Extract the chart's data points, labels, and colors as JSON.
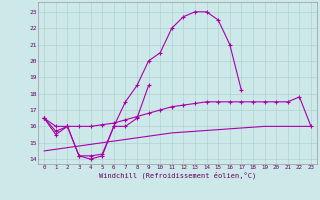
{
  "x": [
    0,
    1,
    2,
    3,
    4,
    5,
    6,
    7,
    8,
    9,
    10,
    11,
    12,
    13,
    14,
    15,
    16,
    17,
    18,
    19,
    20,
    21,
    22,
    23
  ],
  "line1": [
    16.5,
    15.5,
    16.0,
    14.2,
    14.0,
    14.2,
    16.0,
    17.5,
    18.5,
    20.0,
    20.5,
    22.0,
    22.7,
    23.0,
    23.0,
    22.5,
    21.0,
    18.2,
    null,
    null,
    null,
    null,
    null,
    null
  ],
  "line2": [
    16.5,
    15.7,
    16.0,
    14.2,
    14.2,
    14.3,
    16.0,
    16.0,
    16.5,
    18.5,
    null,
    null,
    null,
    null,
    null,
    null,
    null,
    null,
    null,
    null,
    null,
    null,
    null,
    null
  ],
  "line3": [
    16.5,
    16.0,
    16.0,
    16.0,
    16.0,
    16.1,
    16.2,
    16.4,
    16.6,
    16.8,
    17.0,
    17.2,
    17.3,
    17.4,
    17.5,
    17.5,
    17.5,
    17.5,
    17.5,
    17.5,
    17.5,
    17.5,
    17.8,
    16.0
  ],
  "line4": [
    14.5,
    14.6,
    14.7,
    14.8,
    14.9,
    15.0,
    15.1,
    15.2,
    15.3,
    15.4,
    15.5,
    15.6,
    15.65,
    15.7,
    15.75,
    15.8,
    15.85,
    15.9,
    15.95,
    16.0,
    16.0,
    16.0,
    16.0,
    16.0
  ],
  "line_color": "#aa00aa",
  "bg_color": "#cce8e8",
  "grid_color": "#aacccc",
  "ylabel_ticks": [
    14,
    15,
    16,
    17,
    18,
    19,
    20,
    21,
    22,
    23
  ],
  "xlabel_ticks": [
    0,
    1,
    2,
    3,
    4,
    5,
    6,
    7,
    8,
    9,
    10,
    11,
    12,
    13,
    14,
    15,
    16,
    17,
    18,
    19,
    20,
    21,
    22,
    23
  ],
  "xlabel": "Windchill (Refroidissement éolien,°C)",
  "ylim": [
    13.7,
    23.6
  ],
  "xlim": [
    -0.5,
    23.5
  ]
}
